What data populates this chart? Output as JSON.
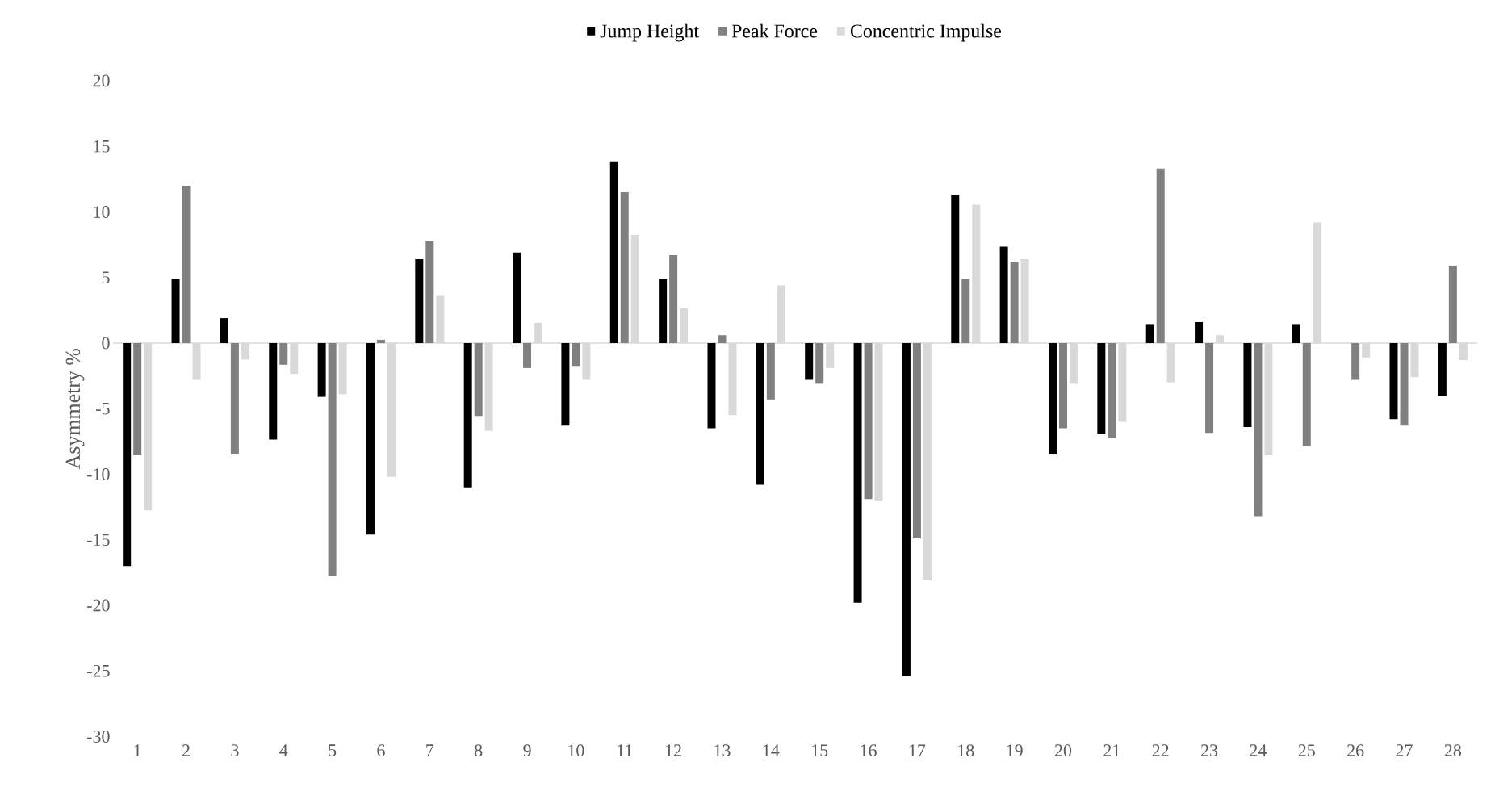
{
  "chart_data": {
    "type": "bar",
    "ylabel": "Asymmetry %",
    "categories": [
      "1",
      "2",
      "3",
      "4",
      "5",
      "6",
      "7",
      "8",
      "9",
      "10",
      "11",
      "12",
      "13",
      "14",
      "15",
      "16",
      "17",
      "18",
      "19",
      "20",
      "21",
      "22",
      "23",
      "24",
      "25",
      "26",
      "27",
      "28"
    ],
    "series": [
      {
        "name": "Jump Height",
        "color": "#000000",
        "values": [
          -17.0,
          4.9,
          1.9,
          -7.35,
          -4.1,
          -14.6,
          6.4,
          -11.0,
          6.9,
          -6.3,
          13.8,
          4.9,
          -6.5,
          -10.8,
          -2.8,
          -19.8,
          -25.4,
          11.3,
          7.35,
          -8.5,
          -6.9,
          1.45,
          1.6,
          -6.4,
          1.45,
          null,
          -5.8,
          -4.0
        ]
      },
      {
        "name": "Peak Force",
        "color": "#808080",
        "values": [
          -8.55,
          12.0,
          -8.5,
          -1.65,
          -17.75,
          0.25,
          7.8,
          -5.55,
          -1.9,
          -1.8,
          11.5,
          6.7,
          0.6,
          -4.3,
          -3.1,
          -11.9,
          -14.9,
          4.9,
          6.15,
          -6.5,
          -7.25,
          13.3,
          -6.85,
          -13.2,
          -7.85,
          -2.8,
          -6.3,
          5.9
        ]
      },
      {
        "name": "Concentric Impulse",
        "color": "#d9d9d9",
        "values": [
          -12.75,
          -2.8,
          -1.25,
          -2.35,
          -3.9,
          -10.2,
          3.6,
          -6.7,
          1.55,
          -2.8,
          8.25,
          2.65,
          -5.5,
          4.4,
          -1.9,
          -12.0,
          -18.1,
          10.55,
          6.4,
          -3.1,
          -6.0,
          -3.0,
          0.6,
          -8.55,
          9.2,
          -1.1,
          -2.6,
          -1.3
        ]
      }
    ],
    "ylim": [
      -30,
      20
    ],
    "yticks": [
      -30,
      -25,
      -20,
      -15,
      -10,
      -5,
      0,
      5,
      10,
      15,
      20
    ],
    "ref_lines": [
      {
        "axis": "y",
        "value": 0,
        "color": "#d9d9d9"
      }
    ],
    "legend": "top"
  }
}
